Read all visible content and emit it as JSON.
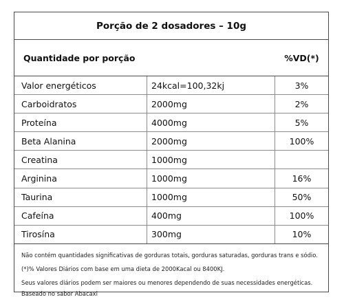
{
  "table": {
    "title": "Porção de 2 dosadores – 10g",
    "header": {
      "quantity": "Quantidade por porção",
      "vd": "%VD(*)"
    },
    "rows": [
      {
        "name": "Valor energéticos",
        "amount": "24kcal=100,32kj",
        "vd": "3%"
      },
      {
        "name": "Carboidratos",
        "amount": "2000mg",
        "vd": "2%"
      },
      {
        "name": "Proteína",
        "amount": "4000mg",
        "vd": "5%"
      },
      {
        "name": "Beta Alanina",
        "amount": "2000mg",
        "vd": "100%"
      },
      {
        "name": "Creatina",
        "amount": "1000mg",
        "vd": ""
      },
      {
        "name": "Arginina",
        "amount": "1000mg",
        "vd": "16%"
      },
      {
        "name": "Taurina",
        "amount": "1000mg",
        "vd": "50%"
      },
      {
        "name": "Cafeína",
        "amount": "400mg",
        "vd": "100%"
      },
      {
        "name": "Tirosína",
        "amount": "300mg",
        "vd": "10%"
      }
    ],
    "notes": {
      "line1": "Não contém quantidades significativas de gorduras totais, gorduras saturadas, gorduras trans e sódio.",
      "line2": "(*)% Valores Diários com base em uma dieta de 2000Kacal ou 8400KJ.",
      "line3": "Seus valores diários podem ser maiores ou menores dependendo de suas necessidades energéticas.",
      "line4": "Baseado no sabor Abacaxi"
    }
  }
}
